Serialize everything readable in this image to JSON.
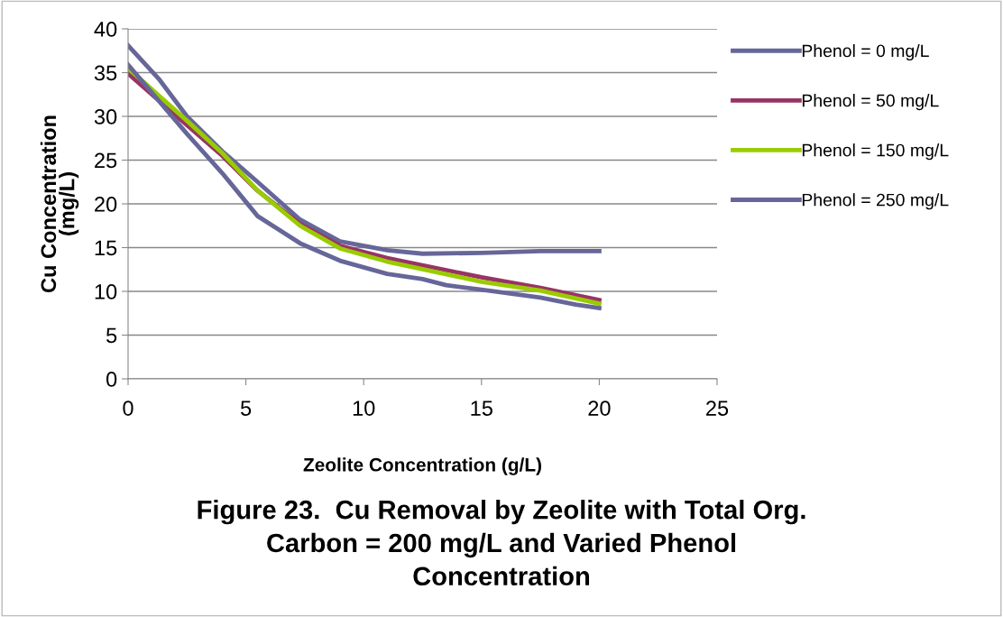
{
  "chart_data": {
    "type": "line",
    "title": "Figure 23.  Cu Removal by Zeolite with Total Org.\nCarbon = 200 mg/L and Varied Phenol\nConcentration",
    "xlabel": "Zeolite Concentration (g/L)",
    "ylabel": "Cu Concentration\n(mg/L)",
    "series": [
      {
        "name": "Phenol = 0 mg/L",
        "color": "#666699",
        "x": [
          0,
          1.3,
          2.5,
          4,
          5.5,
          7.3,
          9,
          11,
          12.5,
          15,
          17.5,
          20
        ],
        "values": [
          38.1,
          34.3,
          30,
          26,
          22.5,
          18.2,
          15.7,
          14.7,
          14.3,
          14.4,
          14.6,
          14.6
        ]
      },
      {
        "name": "Phenol = 50 mg/L",
        "color": "#993366",
        "x": [
          0,
          2.5,
          4,
          5.5,
          7.3,
          9,
          11,
          15,
          17.5,
          20
        ],
        "values": [
          34.9,
          29,
          25.5,
          21.5,
          17.7,
          15.2,
          13.8,
          11.6,
          10.4,
          9.0
        ]
      },
      {
        "name": "Phenol = 150 mg/L",
        "color": "#99cc00",
        "x": [
          0,
          2.5,
          4,
          5.5,
          7.3,
          9,
          11,
          15,
          17.5,
          20
        ],
        "values": [
          35.5,
          29.5,
          25.8,
          21.5,
          17.5,
          14.9,
          13.4,
          11.1,
          10.1,
          8.6
        ]
      },
      {
        "name": "Phenol = 250 mg/L",
        "color": "#666699",
        "x": [
          0,
          2.5,
          4,
          5.5,
          7.3,
          9,
          11,
          12.5,
          13.5,
          15,
          17.5,
          19,
          20
        ],
        "values": [
          35.9,
          28,
          23.5,
          18.6,
          15.5,
          13.5,
          12,
          11.4,
          10.7,
          10.2,
          9.3,
          8.5,
          8.1
        ]
      }
    ],
    "xlim": [
      0,
      25
    ],
    "xticks": [
      0,
      5,
      10,
      15,
      20,
      25
    ],
    "ylim": [
      0,
      40
    ],
    "yticks": [
      0,
      5,
      10,
      15,
      20,
      25,
      30,
      35,
      40
    ],
    "grid": "y",
    "legend": "right",
    "marker": "none",
    "line_style": "solid"
  }
}
